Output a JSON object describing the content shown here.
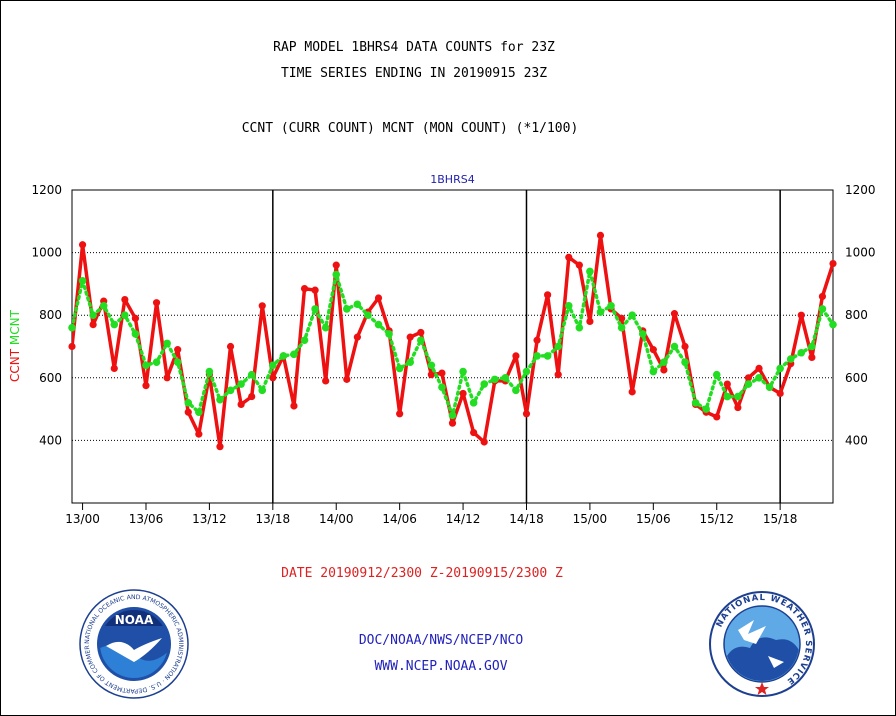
{
  "header": {
    "title_line1": "RAP MODEL 1BHRS4 DATA COUNTS for 23Z",
    "title_line2": "TIME SERIES ENDING IN 20190915 23Z",
    "subtitle": "CCNT (CURR COUNT) MCNT (MON COUNT) (*1/100)"
  },
  "footer": {
    "date_range": "DATE 20190912/2300 Z-20190915/2300 Z",
    "org": "DOC/NOAA/NWS/NCEP/NCO",
    "website": "WWW.NCEP.NOAA.GOV"
  },
  "logos": {
    "noaa_text": "NOAA",
    "noaa_ring": "NATIONAL OCEANIC AND ATMOSPHERIC ADMINISTRATION · U.S. DEPARTMENT OF COMMERCE ·",
    "nws_ring": "NATIONAL WEATHER SERVICE"
  },
  "colors": {
    "ccnt": "#ee1111",
    "mcnt": "#22dd22",
    "title": "#000000",
    "plot_title": "#2222aa",
    "footer_date": "#dd2222",
    "footer_links": "#2222bb"
  },
  "chart_data": {
    "type": "line",
    "title": "1BHRS4",
    "ylabel_parts": [
      "CCNT",
      "MCNT"
    ],
    "ylim": [
      200,
      1200
    ],
    "yticks": [
      400,
      600,
      800,
      1000,
      1200
    ],
    "xlim": [
      -1,
      71
    ],
    "xticks": [
      {
        "x": 0,
        "label": "13/00"
      },
      {
        "x": 6,
        "label": "13/06"
      },
      {
        "x": 12,
        "label": "13/12"
      },
      {
        "x": 18,
        "label": "13/18"
      },
      {
        "x": 24,
        "label": "14/00"
      },
      {
        "x": 30,
        "label": "14/06"
      },
      {
        "x": 36,
        "label": "14/12"
      },
      {
        "x": 42,
        "label": "14/18"
      },
      {
        "x": 48,
        "label": "15/00"
      },
      {
        "x": 54,
        "label": "15/06"
      },
      {
        "x": 60,
        "label": "15/12"
      },
      {
        "x": 66,
        "label": "15/18"
      }
    ],
    "vlines": [
      18,
      42,
      66
    ],
    "hgrid": [
      400,
      600,
      800,
      1000
    ],
    "x_start": -1,
    "series": [
      {
        "name": "CCNT",
        "style": "solid",
        "values": [
          700,
          1025,
          770,
          845,
          630,
          850,
          790,
          575,
          840,
          600,
          690,
          490,
          420,
          610,
          380,
          700,
          515,
          540,
          830,
          600,
          670,
          510,
          885,
          880,
          590,
          960,
          595,
          730,
          810,
          855,
          750,
          485,
          730,
          745,
          610,
          615,
          455,
          550,
          425,
          395,
          590,
          590,
          670,
          485,
          720,
          865,
          610,
          985,
          960,
          780,
          1055,
          820,
          790,
          555,
          750,
          690,
          625,
          805,
          700,
          515,
          490,
          475,
          580,
          505,
          600,
          630,
          570,
          550,
          645,
          800,
          665,
          860,
          965
        ]
      },
      {
        "name": "MCNT",
        "style": "dotted",
        "values": [
          760,
          910,
          800,
          830,
          770,
          800,
          740,
          640,
          650,
          710,
          650,
          520,
          490,
          620,
          530,
          560,
          580,
          610,
          560,
          640,
          670,
          675,
          720,
          820,
          760,
          930,
          820,
          835,
          800,
          770,
          740,
          630,
          650,
          720,
          640,
          570,
          480,
          620,
          520,
          580,
          595,
          600,
          560,
          620,
          670,
          670,
          700,
          830,
          760,
          940,
          810,
          830,
          760,
          800,
          740,
          620,
          650,
          700,
          650,
          520,
          500,
          610,
          540,
          540,
          580,
          600,
          570,
          630,
          660,
          680,
          700,
          820,
          770
        ]
      }
    ]
  }
}
